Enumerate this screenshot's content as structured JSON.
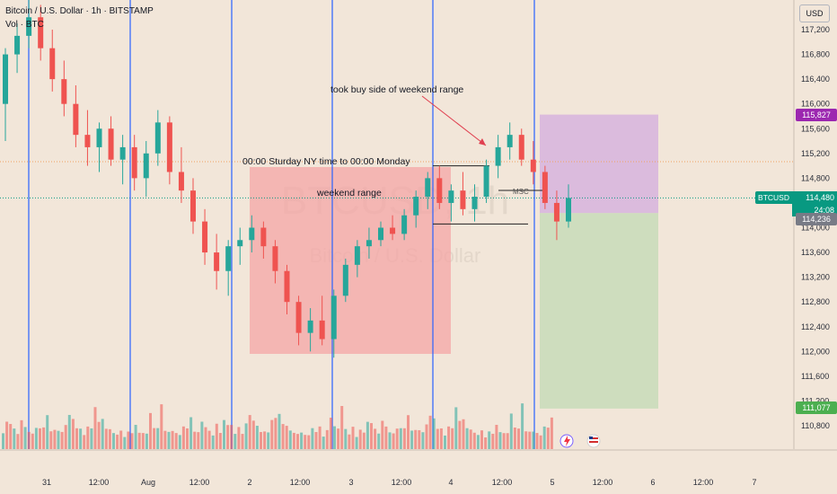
{
  "header": {
    "title": "Bitcoin / U.S. Dollar · 1h · BITSTAMP",
    "subtitle": "Vol · BTC"
  },
  "watermark": {
    "ticker": "BTCUSD, 1h",
    "name": "Bitcoin / U.S. Dollar"
  },
  "currency_button": "USD",
  "annotations": {
    "took_buy_side": "took buy side of weekend range",
    "weekend_window": "00:00 Sturday NY time to 00:00 Monday",
    "weekend_range": "weekend range",
    "mss": "MSC"
  },
  "price_axis": {
    "ticks": [
      "117,200",
      "116,800",
      "116,400",
      "116,000",
      "115,600",
      "115,200",
      "114,800",
      "114,400",
      "114,000",
      "113,600",
      "113,200",
      "112,800",
      "112,400",
      "112,000",
      "111,600",
      "111,200",
      "110,800"
    ],
    "labels": {
      "target": "115,827",
      "symbol": "BTCUSD",
      "current": "114,480",
      "countdown": "24:08",
      "entry": "114,236",
      "stop": "111,077"
    }
  },
  "time_axis": [
    "31",
    "12:00",
    "Aug",
    "12:00",
    "2",
    "12:00",
    "3",
    "12:00",
    "4",
    "12:00",
    "5",
    "12:00",
    "6",
    "12:00",
    "7"
  ],
  "colors": {
    "background": "#f2e6d9",
    "bull": "#26a69a",
    "bear": "#ef5350",
    "session_line": "#2962ff",
    "weekend_box": "#f4a6a6",
    "target_zone": "#d7b3dd",
    "stop_zone": "#c8dbb8",
    "current_price": "#089981",
    "target_label": "#9c27b0",
    "stop_label": "#4caf50",
    "entry_label": "#787b86"
  },
  "chart_data": {
    "type": "candlestick",
    "interval": "1h",
    "y_range": [
      110600,
      117500
    ],
    "current_price": 114480,
    "long_position": {
      "entry": 114236,
      "target": 115827,
      "stop": 111077
    },
    "weekend_range": {
      "high": 115000,
      "low": 114060
    },
    "candles": [
      {
        "o": 116000,
        "h": 116900,
        "l": 115400,
        "c": 116800
      },
      {
        "o": 116800,
        "h": 117300,
        "l": 116500,
        "c": 117100
      },
      {
        "o": 117100,
        "h": 117700,
        "l": 116900,
        "c": 117400
      },
      {
        "o": 117400,
        "h": 117600,
        "l": 116700,
        "c": 116900
      },
      {
        "o": 116900,
        "h": 117200,
        "l": 116200,
        "c": 116400
      },
      {
        "o": 116400,
        "h": 116700,
        "l": 115800,
        "c": 116000
      },
      {
        "o": 116000,
        "h": 116300,
        "l": 115300,
        "c": 115500
      },
      {
        "o": 115500,
        "h": 115900,
        "l": 115000,
        "c": 115300
      },
      {
        "o": 115300,
        "h": 115700,
        "l": 114900,
        "c": 115600
      },
      {
        "o": 115600,
        "h": 115800,
        "l": 115000,
        "c": 115100
      },
      {
        "o": 115100,
        "h": 115500,
        "l": 114700,
        "c": 115300
      },
      {
        "o": 115300,
        "h": 115500,
        "l": 114600,
        "c": 114800
      },
      {
        "o": 114800,
        "h": 115400,
        "l": 114500,
        "c": 115200
      },
      {
        "o": 115200,
        "h": 115900,
        "l": 115000,
        "c": 115700
      },
      {
        "o": 115700,
        "h": 115800,
        "l": 114700,
        "c": 114900
      },
      {
        "o": 114900,
        "h": 115300,
        "l": 114400,
        "c": 114600
      },
      {
        "o": 114600,
        "h": 114800,
        "l": 113900,
        "c": 114100
      },
      {
        "o": 114100,
        "h": 114300,
        "l": 113400,
        "c": 113600
      },
      {
        "o": 113600,
        "h": 113900,
        "l": 113000,
        "c": 113300
      },
      {
        "o": 113300,
        "h": 113800,
        "l": 112900,
        "c": 113700
      },
      {
        "o": 113700,
        "h": 114000,
        "l": 113400,
        "c": 113800
      },
      {
        "o": 113800,
        "h": 114200,
        "l": 113600,
        "c": 114000
      },
      {
        "o": 114000,
        "h": 114100,
        "l": 113500,
        "c": 113700
      },
      {
        "o": 113700,
        "h": 113800,
        "l": 113100,
        "c": 113300
      },
      {
        "o": 113300,
        "h": 113400,
        "l": 112600,
        "c": 112800
      },
      {
        "o": 112800,
        "h": 112900,
        "l": 112100,
        "c": 112300
      },
      {
        "o": 112300,
        "h": 112700,
        "l": 112000,
        "c": 112500
      },
      {
        "o": 112500,
        "h": 112900,
        "l": 112100,
        "c": 112200
      },
      {
        "o": 112200,
        "h": 113000,
        "l": 111900,
        "c": 112900
      },
      {
        "o": 112900,
        "h": 113500,
        "l": 112800,
        "c": 113400
      },
      {
        "o": 113400,
        "h": 113800,
        "l": 113200,
        "c": 113700
      },
      {
        "o": 113700,
        "h": 114000,
        "l": 113500,
        "c": 113800
      },
      {
        "o": 113800,
        "h": 114100,
        "l": 113700,
        "c": 114000
      },
      {
        "o": 114000,
        "h": 114200,
        "l": 113800,
        "c": 113900
      },
      {
        "o": 113900,
        "h": 114300,
        "l": 113800,
        "c": 114200
      },
      {
        "o": 114200,
        "h": 114600,
        "l": 114000,
        "c": 114500
      },
      {
        "o": 114500,
        "h": 114900,
        "l": 114300,
        "c": 114800
      },
      {
        "o": 114800,
        "h": 115000,
        "l": 114300,
        "c": 114400
      },
      {
        "o": 114400,
        "h": 114700,
        "l": 114100,
        "c": 114600
      },
      {
        "o": 114600,
        "h": 114900,
        "l": 114200,
        "c": 114300
      },
      {
        "o": 114300,
        "h": 114700,
        "l": 114100,
        "c": 114500
      },
      {
        "o": 114500,
        "h": 115100,
        "l": 114400,
        "c": 115000
      },
      {
        "o": 115000,
        "h": 115500,
        "l": 114800,
        "c": 115300
      },
      {
        "o": 115300,
        "h": 115700,
        "l": 115100,
        "c": 115500
      },
      {
        "o": 115500,
        "h": 115600,
        "l": 115000,
        "c": 115100
      },
      {
        "o": 115100,
        "h": 115400,
        "l": 114700,
        "c": 114900
      },
      {
        "o": 114900,
        "h": 115000,
        "l": 114300,
        "c": 114400
      },
      {
        "o": 114400,
        "h": 114600,
        "l": 113800,
        "c": 114100
      },
      {
        "o": 114100,
        "h": 114700,
        "l": 114000,
        "c": 114480
      }
    ],
    "volume": [
      28,
      34,
      40,
      26,
      22,
      38,
      30,
      24,
      20,
      32,
      26,
      36,
      42,
      30,
      24,
      28,
      22,
      34,
      46,
      40,
      30,
      26,
      22,
      28,
      36,
      52,
      44,
      38,
      30,
      26,
      22,
      20,
      24,
      18,
      22,
      26,
      30,
      28,
      20,
      24,
      46,
      30,
      28,
      60,
      26,
      22,
      28,
      20,
      24
    ]
  }
}
